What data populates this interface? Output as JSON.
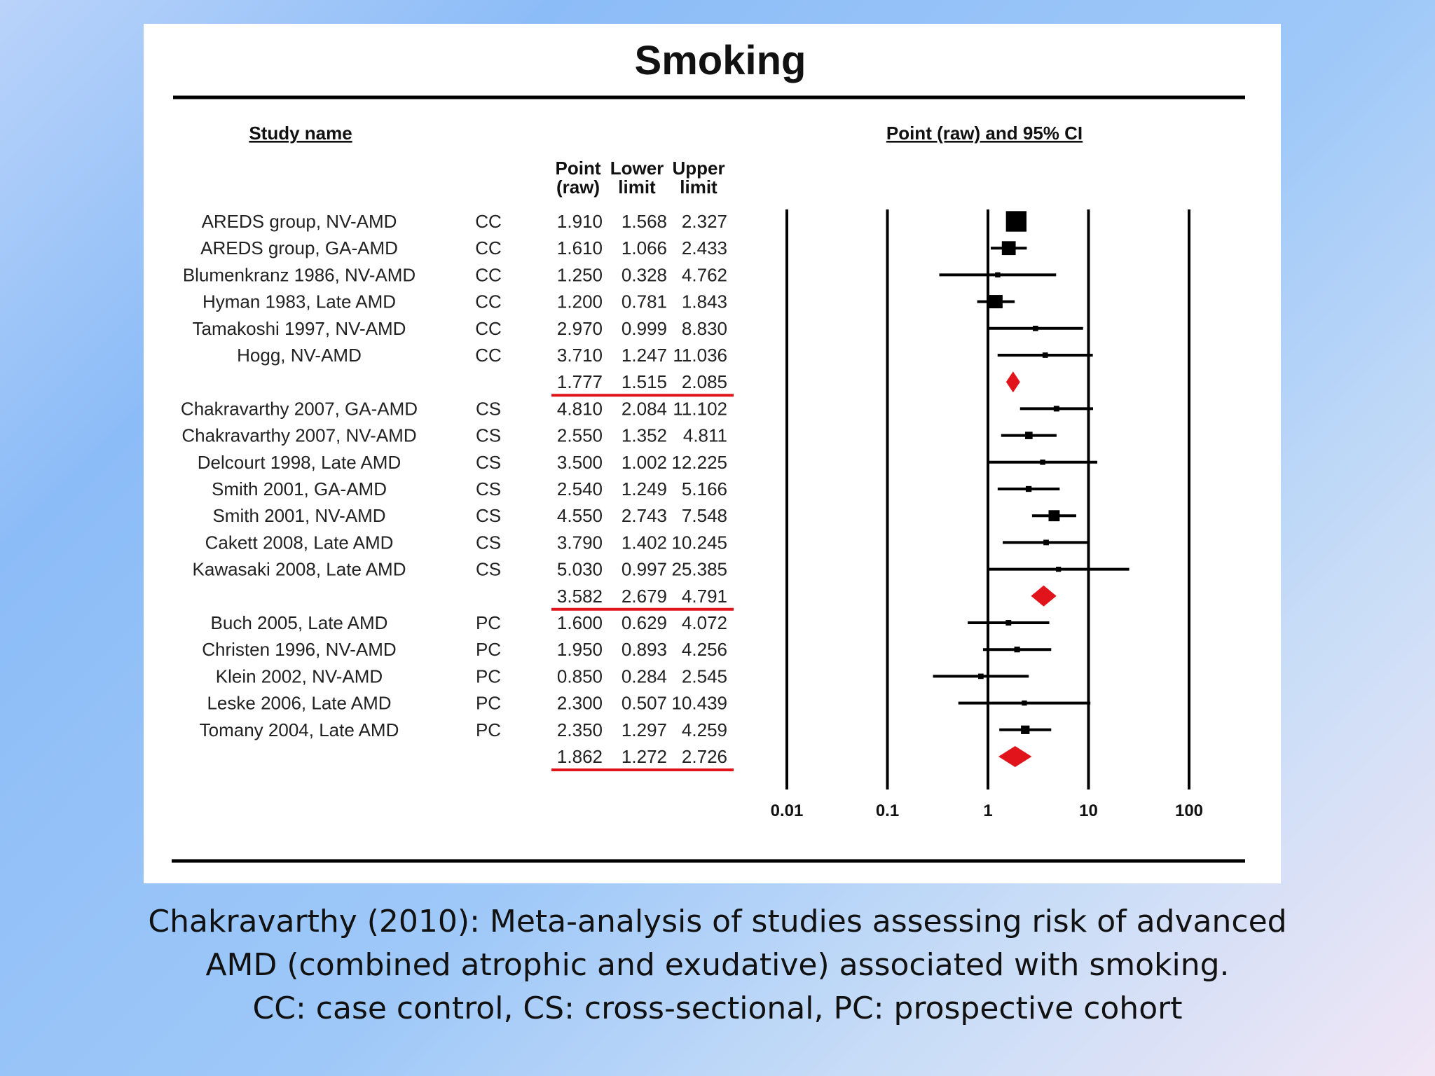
{
  "chart_data": {
    "type": "forest",
    "title": "Smoking",
    "xscale": "log",
    "xlim": [
      0.01,
      100
    ],
    "xticks": [
      "0.01",
      "0.1",
      "1",
      "10",
      "100"
    ],
    "headers": {
      "study": "Study name",
      "point_top": "Point",
      "point_bottom": "(raw)",
      "lower_top": "Lower",
      "lower_bottom": "limit",
      "upper_top": "Upper",
      "upper_bottom": "limit",
      "plot": "Point (raw) and 95% CI"
    },
    "rows": [
      {
        "name": "AREDS group, NV-AMD",
        "design": "CC",
        "point": "1.910",
        "lower": "1.568",
        "upper": "2.327",
        "summary": false
      },
      {
        "name": "AREDS group, GA-AMD",
        "design": "CC",
        "point": "1.610",
        "lower": "1.066",
        "upper": "2.433",
        "summary": false
      },
      {
        "name": "Blumenkranz 1986, NV-AMD",
        "design": "CC",
        "point": "1.250",
        "lower": "0.328",
        "upper": "4.762",
        "summary": false
      },
      {
        "name": "Hyman 1983, Late AMD",
        "design": "CC",
        "point": "1.200",
        "lower": "0.781",
        "upper": "1.843",
        "summary": false
      },
      {
        "name": "Tamakoshi 1997, NV-AMD",
        "design": "CC",
        "point": "2.970",
        "lower": "0.999",
        "upper": "8.830",
        "summary": false
      },
      {
        "name": "Hogg, NV-AMD",
        "design": "CC",
        "point": "3.710",
        "lower": "1.247",
        "upper": "11.036",
        "summary": false
      },
      {
        "name": "",
        "design": "",
        "point": "1.777",
        "lower": "1.515",
        "upper": "2.085",
        "summary": true
      },
      {
        "name": "Chakravarthy 2007, GA-AMD",
        "design": "CS",
        "point": "4.810",
        "lower": "2.084",
        "upper": "11.102",
        "summary": false
      },
      {
        "name": "Chakravarthy 2007, NV-AMD",
        "design": "CS",
        "point": "2.550",
        "lower": "1.352",
        "upper": "4.811",
        "summary": false
      },
      {
        "name": "Delcourt 1998, Late AMD",
        "design": "CS",
        "point": "3.500",
        "lower": "1.002",
        "upper": "12.225",
        "summary": false
      },
      {
        "name": "Smith 2001, GA-AMD",
        "design": "CS",
        "point": "2.540",
        "lower": "1.249",
        "upper": "5.166",
        "summary": false
      },
      {
        "name": "Smith 2001, NV-AMD",
        "design": "CS",
        "point": "4.550",
        "lower": "2.743",
        "upper": "7.548",
        "summary": false
      },
      {
        "name": "Cakett 2008, Late AMD",
        "design": "CS",
        "point": "3.790",
        "lower": "1.402",
        "upper": "10.245",
        "summary": false
      },
      {
        "name": "Kawasaki 2008, Late AMD",
        "design": "CS",
        "point": "5.030",
        "lower": "0.997",
        "upper": "25.385",
        "summary": false
      },
      {
        "name": "",
        "design": "",
        "point": "3.582",
        "lower": "2.679",
        "upper": "4.791",
        "summary": true
      },
      {
        "name": "Buch 2005, Late AMD",
        "design": "PC",
        "point": "1.600",
        "lower": "0.629",
        "upper": "4.072",
        "summary": false
      },
      {
        "name": "Christen 1996, NV-AMD",
        "design": "PC",
        "point": "1.950",
        "lower": "0.893",
        "upper": "4.256",
        "summary": false
      },
      {
        "name": "Klein 2002, NV-AMD",
        "design": "PC",
        "point": "0.850",
        "lower": "0.284",
        "upper": "2.545",
        "summary": false
      },
      {
        "name": "Leske 2006, Late AMD",
        "design": "PC",
        "point": "2.300",
        "lower": "0.507",
        "upper": "10.439",
        "summary": false
      },
      {
        "name": "Tomany 2004, Late AMD",
        "design": "PC",
        "point": "2.350",
        "lower": "1.297",
        "upper": "4.259",
        "summary": false
      },
      {
        "name": "",
        "design": "",
        "point": "1.862",
        "lower": "1.272",
        "upper": "2.726",
        "summary": true
      }
    ],
    "colors": {
      "summary": "#e2141b",
      "marker": "#000000",
      "text": "#222222"
    }
  },
  "caption": {
    "line1": "Chakravarthy (2010): Meta-analysis of studies assessing risk of advanced",
    "line2": "AMD (combined atrophic and exudative) associated with smoking.",
    "line3": "CC: case control, CS: cross-sectional, PC: prospective cohort"
  }
}
